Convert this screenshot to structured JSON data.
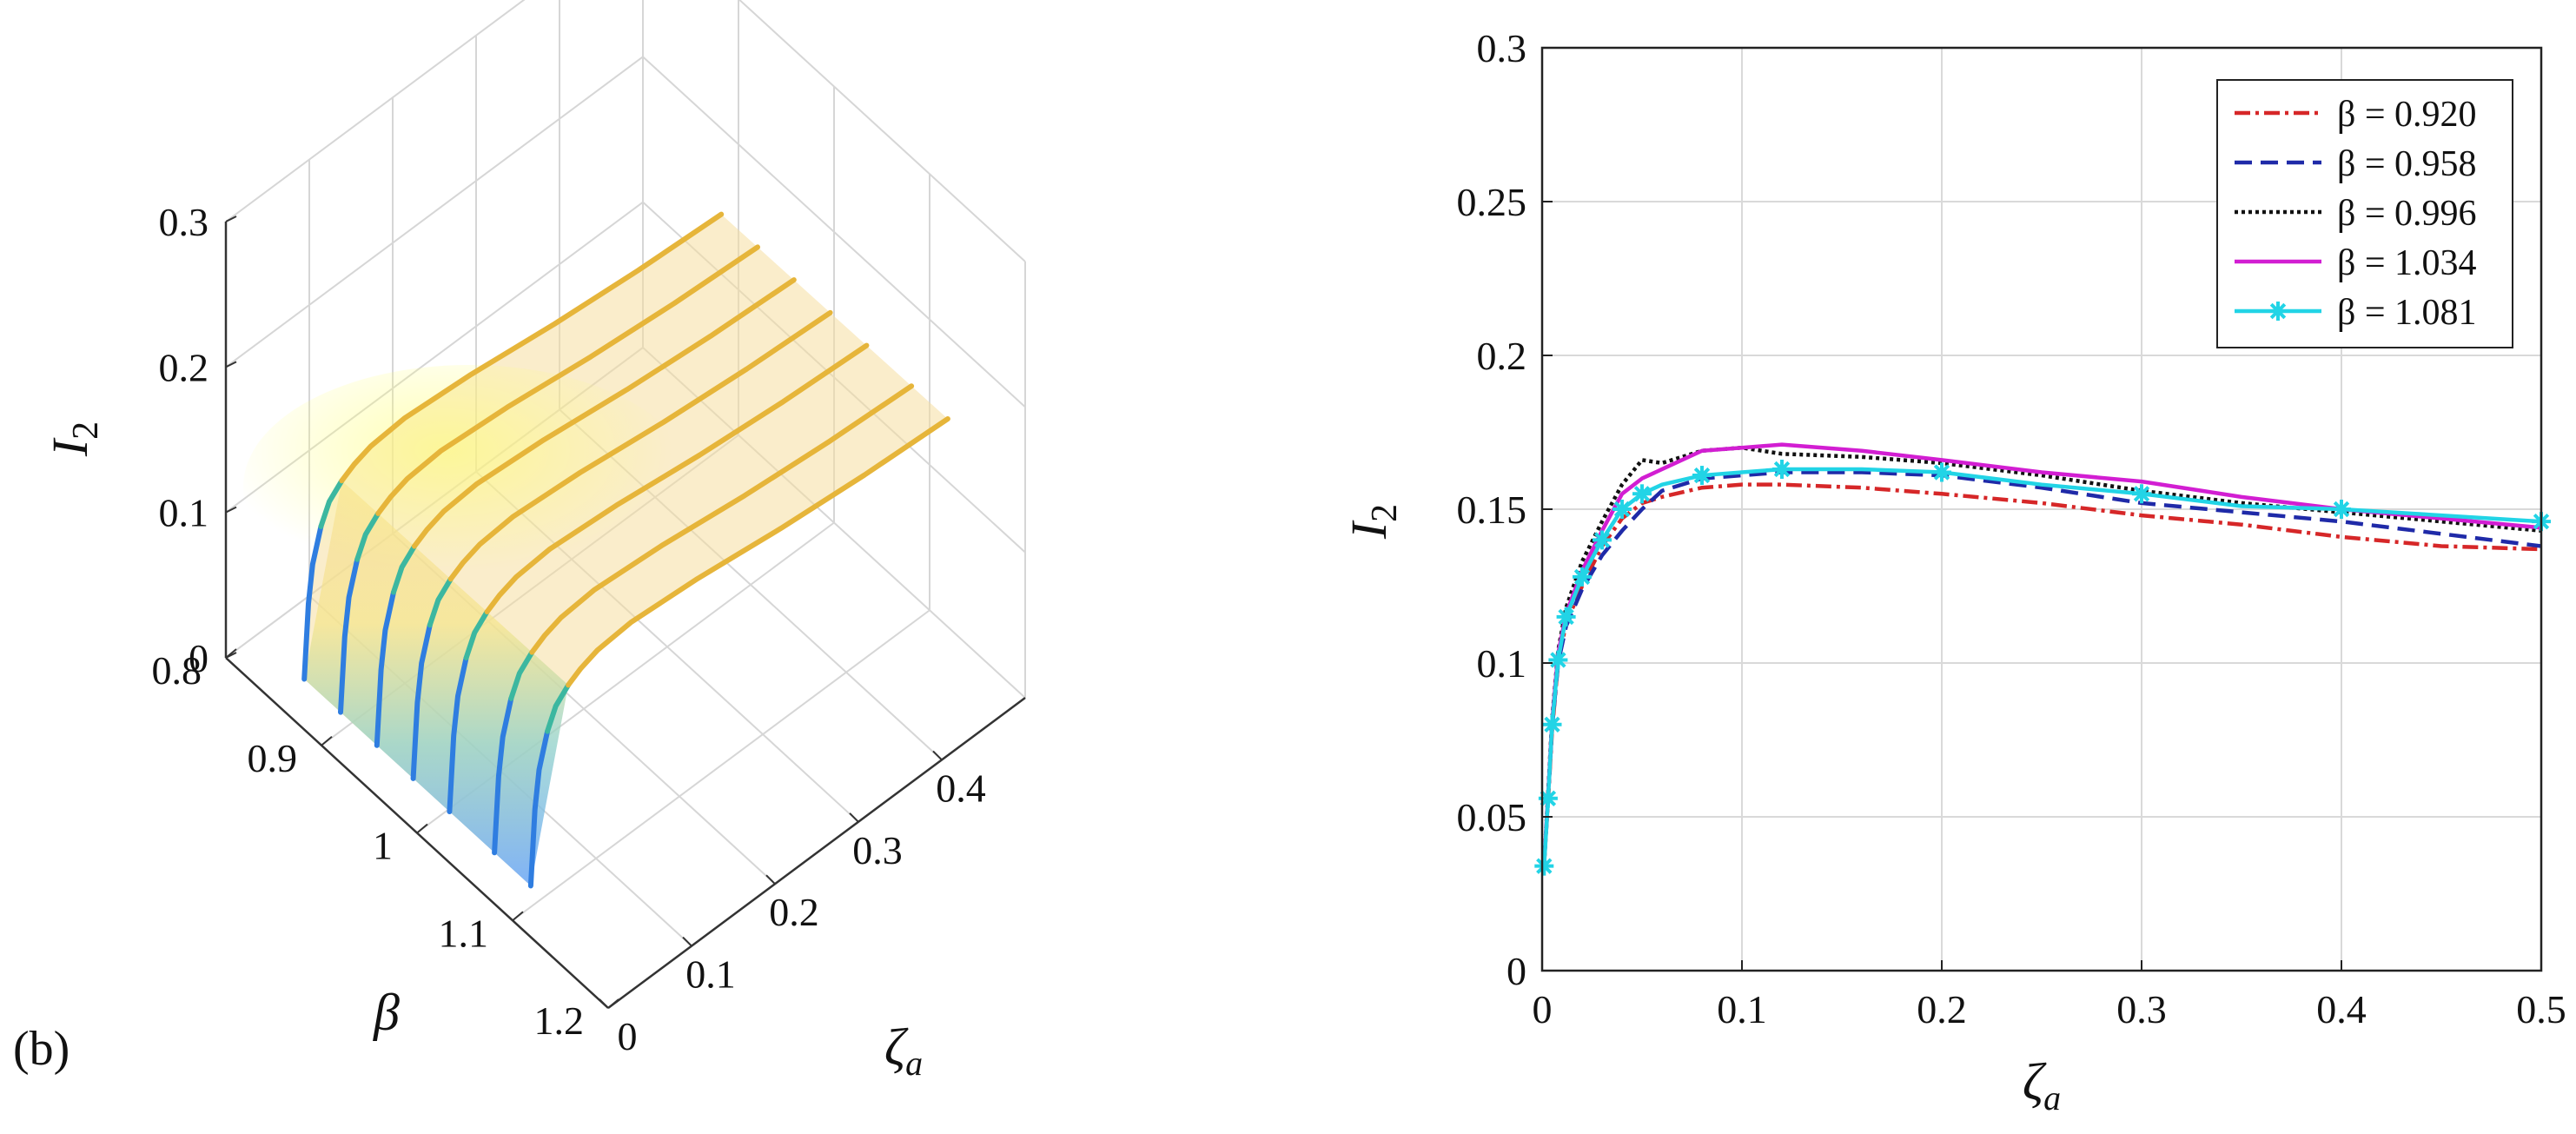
{
  "panel_label": "(b)",
  "chart_data": [
    {
      "type": "surface3d",
      "title": "",
      "zlabel": "I",
      "zlabel_subscript": "2",
      "ylabel": "β",
      "xlabel": "ζ",
      "xlabel_subscript": "a",
      "xlim": [
        0,
        0.5
      ],
      "ylim": [
        0.8,
        1.2
      ],
      "zlim": [
        0,
        0.3
      ],
      "x_ticks": [
        "0",
        "0.1",
        "0.2",
        "0.3",
        "0.4"
      ],
      "x_tick_values": [
        0,
        0.1,
        0.2,
        0.3,
        0.4
      ],
      "y_ticks": [
        "0.8",
        "0.9",
        "1",
        "1.1",
        "1.2"
      ],
      "y_tick_values": [
        0.8,
        0.9,
        1.0,
        1.1,
        1.2
      ],
      "z_ticks": [
        "0",
        "0.1",
        "0.2",
        "0.3"
      ],
      "z_tick_values": [
        0,
        0.1,
        0.2,
        0.3
      ],
      "grid": true,
      "colormap": "parula",
      "beta_lines": [
        0.882,
        0.92,
        0.958,
        0.996,
        1.034,
        1.081,
        1.119
      ],
      "zeta_samples": [
        0,
        0.005,
        0.01,
        0.02,
        0.03,
        0.045,
        0.06,
        0.08,
        0.12,
        0.2,
        0.3,
        0.4,
        0.5
      ],
      "i2_profile": [
        0.035,
        0.085,
        0.11,
        0.132,
        0.145,
        0.153,
        0.158,
        0.162,
        0.164,
        0.16,
        0.152,
        0.146,
        0.142
      ]
    },
    {
      "type": "line",
      "title": "",
      "xlabel": "ζ",
      "xlabel_subscript": "a",
      "ylabel": "I",
      "ylabel_subscript": "2",
      "xlim": [
        0,
        0.5
      ],
      "ylim": [
        0,
        0.3
      ],
      "x_ticks": [
        "0",
        "0.1",
        "0.2",
        "0.3",
        "0.4",
        "0.5"
      ],
      "x_tick_values": [
        0,
        0.1,
        0.2,
        0.3,
        0.4,
        0.5
      ],
      "y_ticks": [
        "0",
        "0.05",
        "0.1",
        "0.15",
        "0.2",
        "0.25",
        "0.3"
      ],
      "y_tick_values": [
        0,
        0.05,
        0.1,
        0.15,
        0.2,
        0.25,
        0.3
      ],
      "grid": true,
      "legend_position": "top-right",
      "x": [
        0.001,
        0.003,
        0.005,
        0.008,
        0.012,
        0.02,
        0.03,
        0.04,
        0.05,
        0.06,
        0.08,
        0.1,
        0.12,
        0.16,
        0.2,
        0.25,
        0.3,
        0.35,
        0.4,
        0.45,
        0.5
      ],
      "series": [
        {
          "name": "β = 0.920",
          "color": "#d62728",
          "dash": "18 6 4 6",
          "marker": "none",
          "values": [
            0.035,
            0.055,
            0.078,
            0.1,
            0.113,
            0.125,
            0.138,
            0.147,
            0.152,
            0.154,
            0.157,
            0.158,
            0.158,
            0.157,
            0.155,
            0.152,
            0.148,
            0.145,
            0.141,
            0.138,
            0.137
          ]
        },
        {
          "name": "β = 0.958",
          "color": "#1f2aa8",
          "dash": "20 10",
          "marker": "none",
          "values": [
            0.035,
            0.056,
            0.079,
            0.1,
            0.112,
            0.124,
            0.135,
            0.143,
            0.15,
            0.156,
            0.16,
            0.161,
            0.162,
            0.162,
            0.161,
            0.157,
            0.152,
            0.149,
            0.146,
            0.142,
            0.138
          ]
        },
        {
          "name": "β = 0.996",
          "color": "#111111",
          "dash": "4 4",
          "marker": "none",
          "values": [
            0.035,
            0.058,
            0.082,
            0.104,
            0.118,
            0.133,
            0.146,
            0.158,
            0.166,
            0.165,
            0.169,
            0.17,
            0.168,
            0.167,
            0.165,
            0.161,
            0.156,
            0.152,
            0.149,
            0.146,
            0.143
          ]
        },
        {
          "name": "β = 1.034",
          "color": "#d21ed2",
          "dash": "",
          "marker": "none",
          "values": [
            0.035,
            0.057,
            0.081,
            0.103,
            0.116,
            0.13,
            0.143,
            0.155,
            0.16,
            0.163,
            0.169,
            0.17,
            0.171,
            0.169,
            0.166,
            0.162,
            0.159,
            0.154,
            0.15,
            0.147,
            0.144
          ]
        },
        {
          "name": "β = 1.081",
          "color": "#22d4e6",
          "dash": "",
          "marker": "asterisk",
          "values": [
            0.034,
            0.056,
            0.08,
            0.101,
            0.115,
            0.128,
            0.14,
            0.15,
            0.155,
            0.158,
            0.161,
            0.162,
            0.163,
            0.163,
            0.162,
            0.158,
            0.155,
            0.151,
            0.15,
            0.148,
            0.146
          ]
        }
      ]
    }
  ]
}
